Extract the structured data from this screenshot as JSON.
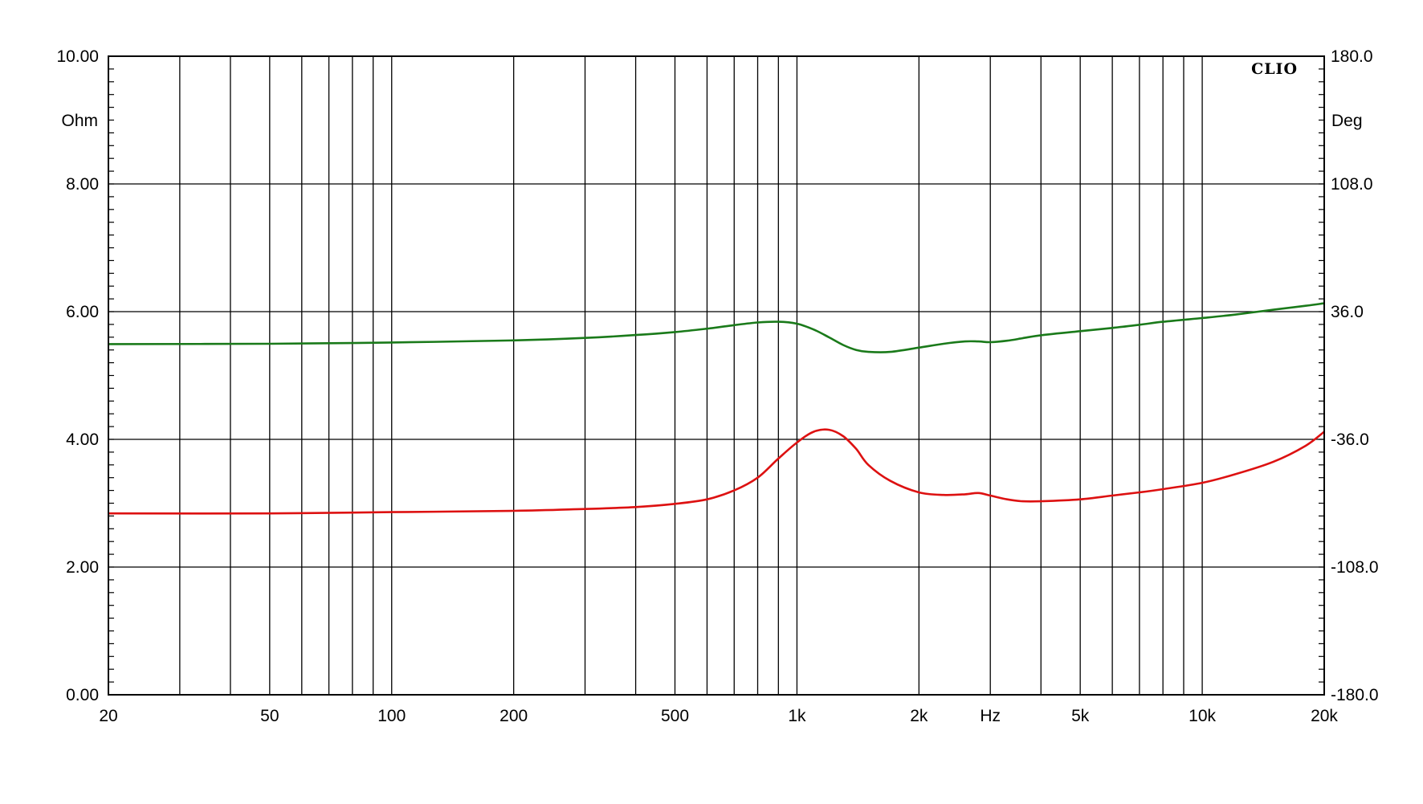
{
  "chart_data": {
    "type": "line",
    "brand": "CLIO",
    "x_axis": {
      "scale": "log",
      "range": [
        20,
        20000
      ],
      "unit_label": "Hz",
      "tick_labels": [
        {
          "label": "20",
          "value": 20
        },
        {
          "label": "50",
          "value": 50
        },
        {
          "label": "100",
          "value": 100
        },
        {
          "label": "200",
          "value": 200
        },
        {
          "label": "500",
          "value": 500
        },
        {
          "label": "1k",
          "value": 1000
        },
        {
          "label": "2k",
          "value": 2000
        },
        {
          "label": "Hz",
          "value": 3000
        },
        {
          "label": "5k",
          "value": 5000
        },
        {
          "label": "10k",
          "value": 10000
        },
        {
          "label": "20k",
          "value": 20000
        }
      ],
      "gridlines": [
        20,
        30,
        40,
        50,
        60,
        70,
        80,
        90,
        100,
        200,
        300,
        400,
        500,
        600,
        700,
        800,
        900,
        1000,
        2000,
        3000,
        4000,
        5000,
        6000,
        7000,
        8000,
        9000,
        10000,
        20000
      ]
    },
    "y_left": {
      "unit_label": "Ohm",
      "range": [
        0,
        10
      ],
      "ticks": [
        0,
        2,
        4,
        6,
        8,
        10
      ],
      "tick_labels": [
        "0.00",
        "2.00",
        "4.00",
        "6.00",
        "8.00",
        "10.00"
      ]
    },
    "y_right": {
      "unit_label": "Deg",
      "range": [
        -180,
        180
      ],
      "ticks": [
        -180,
        -108,
        -36,
        36,
        108,
        180
      ],
      "tick_labels": [
        "-180.0",
        "-108.0",
        "-36.0",
        "36.0",
        "108.0",
        "180.0"
      ]
    },
    "grid": true,
    "series": [
      {
        "axis": "left",
        "color": "#dd1111",
        "points": [
          [
            20,
            2.84
          ],
          [
            50,
            2.84
          ],
          [
            100,
            2.86
          ],
          [
            200,
            2.88
          ],
          [
            300,
            2.91
          ],
          [
            400,
            2.94
          ],
          [
            500,
            2.99
          ],
          [
            600,
            3.06
          ],
          [
            700,
            3.2
          ],
          [
            800,
            3.4
          ],
          [
            900,
            3.7
          ],
          [
            1000,
            3.95
          ],
          [
            1100,
            4.12
          ],
          [
            1200,
            4.15
          ],
          [
            1300,
            4.05
          ],
          [
            1400,
            3.85
          ],
          [
            1500,
            3.6
          ],
          [
            1700,
            3.35
          ],
          [
            2000,
            3.17
          ],
          [
            2300,
            3.13
          ],
          [
            2600,
            3.14
          ],
          [
            2800,
            3.16
          ],
          [
            3000,
            3.12
          ],
          [
            3300,
            3.06
          ],
          [
            3600,
            3.03
          ],
          [
            4000,
            3.03
          ],
          [
            5000,
            3.06
          ],
          [
            6000,
            3.12
          ],
          [
            7000,
            3.17
          ],
          [
            8000,
            3.22
          ],
          [
            10000,
            3.32
          ],
          [
            12000,
            3.45
          ],
          [
            15000,
            3.65
          ],
          [
            18000,
            3.9
          ],
          [
            20000,
            4.12
          ]
        ]
      },
      {
        "axis": "right",
        "color": "#1a7a1a",
        "points": [
          [
            20,
            17.7
          ],
          [
            50,
            17.9
          ],
          [
            100,
            18.6
          ],
          [
            200,
            19.8
          ],
          [
            300,
            21.2
          ],
          [
            400,
            22.8
          ],
          [
            500,
            24.5
          ],
          [
            600,
            26.4
          ],
          [
            700,
            28.4
          ],
          [
            800,
            29.9
          ],
          [
            900,
            30.3
          ],
          [
            1000,
            29.2
          ],
          [
            1100,
            25.9
          ],
          [
            1200,
            21.5
          ],
          [
            1300,
            17.2
          ],
          [
            1400,
            14.4
          ],
          [
            1500,
            13.3
          ],
          [
            1700,
            13.3
          ],
          [
            2000,
            15.7
          ],
          [
            2300,
            17.9
          ],
          [
            2600,
            19.2
          ],
          [
            2800,
            19.2
          ],
          [
            3000,
            18.8
          ],
          [
            3300,
            19.6
          ],
          [
            3600,
            21.0
          ],
          [
            4000,
            22.7
          ],
          [
            5000,
            25.0
          ],
          [
            6000,
            26.8
          ],
          [
            7000,
            28.6
          ],
          [
            8000,
            30.3
          ],
          [
            10000,
            32.4
          ],
          [
            12000,
            34.3
          ],
          [
            15000,
            37.1
          ],
          [
            18000,
            39.3
          ],
          [
            20000,
            40.7
          ]
        ]
      }
    ]
  }
}
